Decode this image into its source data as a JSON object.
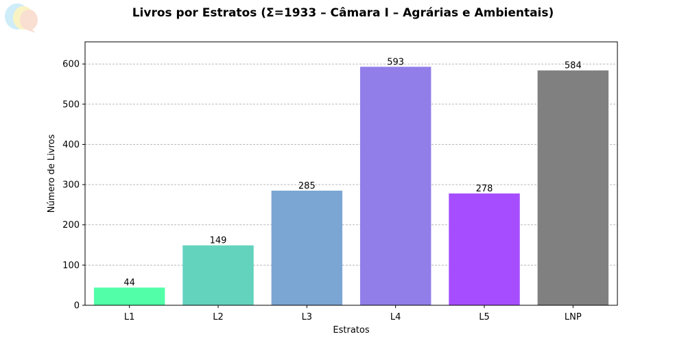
{
  "chart_data": {
    "type": "bar",
    "title": "Livros por Estratos (Σ=1933 – Câmara I – Agrárias e Ambientais)",
    "xlabel": "Estratos",
    "ylabel": "Número de Livros",
    "categories": [
      "L1",
      "L2",
      "L3",
      "L4",
      "L5",
      "LNP"
    ],
    "values": [
      44,
      149,
      285,
      593,
      278,
      584
    ],
    "colors": [
      "#52ffa8",
      "#63d3be",
      "#7ba6d4",
      "#917ee9",
      "#a64eff",
      "#808080"
    ],
    "ylim": [
      0,
      655
    ],
    "yticks": [
      0,
      100,
      200,
      300,
      400,
      500,
      600
    ],
    "grid": "y-dashed",
    "legend": "none"
  },
  "logo": {
    "icon": "speech-bubbles-logo",
    "colors": [
      "#bfe6f7",
      "#f7f0b0",
      "#f7d3c4"
    ]
  }
}
